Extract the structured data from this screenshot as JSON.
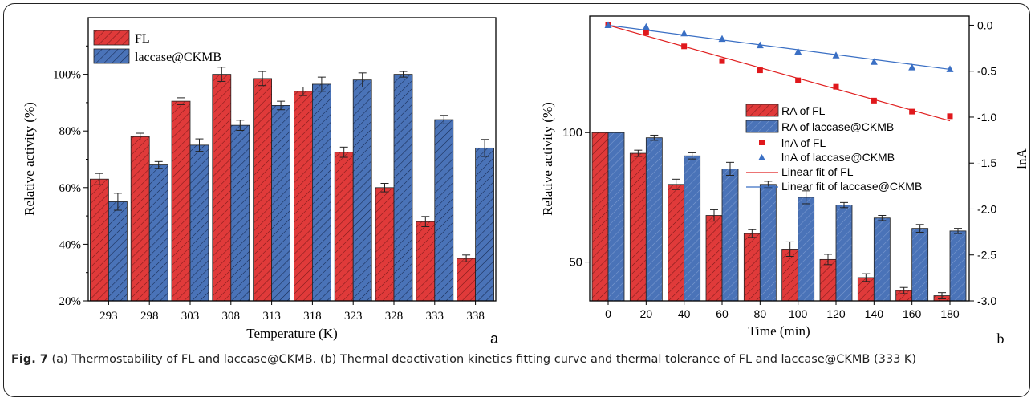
{
  "caption": {
    "label": "Fig. 7",
    "text": " (a) Thermostability of FL and laccase@CKMB. (b) Thermal deactivation kinetics fitting curve and thermal tolerance of FL and laccase@CKMB (333 K)"
  },
  "colors": {
    "fl": "#e03a3a",
    "laccase": "#4a73b8",
    "edge": "#222222"
  },
  "chart_data": [
    {
      "panel_label": "a",
      "type": "bar",
      "title": "",
      "xlabel": "Temperature (K)",
      "ylabel": "Relative activity (%)",
      "ylim": [
        20,
        120
      ],
      "yticks": [
        20,
        40,
        60,
        80,
        100
      ],
      "ytick_labels": [
        "20%",
        "40%",
        "60%",
        "80%",
        "100%"
      ],
      "categories": [
        "293",
        "298",
        "303",
        "308",
        "313",
        "318",
        "323",
        "328",
        "333",
        "338"
      ],
      "legend_position": "top-left",
      "series": [
        {
          "name": "FL",
          "values": [
            63,
            78,
            90.5,
            100,
            98.5,
            94,
            72.5,
            60,
            48,
            35
          ],
          "errors": [
            2,
            1.2,
            1.2,
            2.5,
            2.5,
            1.5,
            1.8,
            1.5,
            1.8,
            1.2
          ]
        },
        {
          "name": "laccase@CKMB",
          "values": [
            55,
            68,
            75,
            82,
            89,
            96.5,
            98,
            100,
            84,
            74
          ],
          "errors": [
            3,
            1.2,
            2.2,
            1.8,
            1.5,
            2.5,
            2.5,
            1,
            1.5,
            3
          ]
        }
      ]
    },
    {
      "panel_label": "b",
      "type": "bar",
      "title": "",
      "xlabel": "Time (min)",
      "ylabel": "Relative activity (%)",
      "y2label": "lnA",
      "ylim": [
        35,
        145
      ],
      "yticks": [
        50,
        100
      ],
      "y2lim": [
        -3.0,
        0.1
      ],
      "y2ticks": [
        0.0,
        -0.5,
        -1.0,
        -1.5,
        -2.0,
        -2.5,
        -3.0
      ],
      "y2tick_labels": [
        "0.0",
        "-0.5",
        "-1.0",
        "-1.5",
        "-2.0",
        "-2.5",
        "-3.0"
      ],
      "categories": [
        "0",
        "20",
        "40",
        "60",
        "80",
        "100",
        "120",
        "140",
        "160",
        "180"
      ],
      "legend_position": "center-right",
      "series": [
        {
          "name": "RA of FL",
          "values": [
            100,
            92,
            80,
            68,
            61,
            55,
            51,
            44,
            39,
            37
          ],
          "errors": [
            0,
            1.2,
            2,
            2.2,
            1.5,
            2.8,
            2,
            1.5,
            1.2,
            1.2
          ]
        },
        {
          "name": "RA of laccase@CKMB",
          "values": [
            100,
            98,
            91,
            86,
            80,
            75,
            72,
            67,
            63,
            62
          ],
          "errors": [
            0,
            1,
            1.2,
            2.5,
            1.2,
            2.5,
            1,
            1,
            1.5,
            1
          ]
        }
      ],
      "scatter_series": [
        {
          "name": "lnA of FL",
          "x": [
            0,
            20,
            40,
            60,
            80,
            100,
            120,
            140,
            160,
            180
          ],
          "y": [
            0.0,
            -0.08,
            -0.23,
            -0.39,
            -0.49,
            -0.6,
            -0.67,
            -0.82,
            -0.94,
            -0.99
          ]
        },
        {
          "name": "lnA of laccase@CKMB",
          "x": [
            0,
            20,
            40,
            60,
            80,
            100,
            120,
            140,
            160,
            180
          ],
          "y": [
            0.0,
            -0.02,
            -0.09,
            -0.15,
            -0.22,
            -0.29,
            -0.33,
            -0.4,
            -0.46,
            -0.48
          ]
        }
      ],
      "fit_lines": [
        {
          "name": "Linear fit of FL",
          "x": [
            0,
            180
          ],
          "y": [
            0.0,
            -1.04
          ]
        },
        {
          "name": "Linear fit of laccase@CKMB",
          "x": [
            0,
            180
          ],
          "y": [
            0.0,
            -0.48
          ]
        }
      ]
    }
  ]
}
